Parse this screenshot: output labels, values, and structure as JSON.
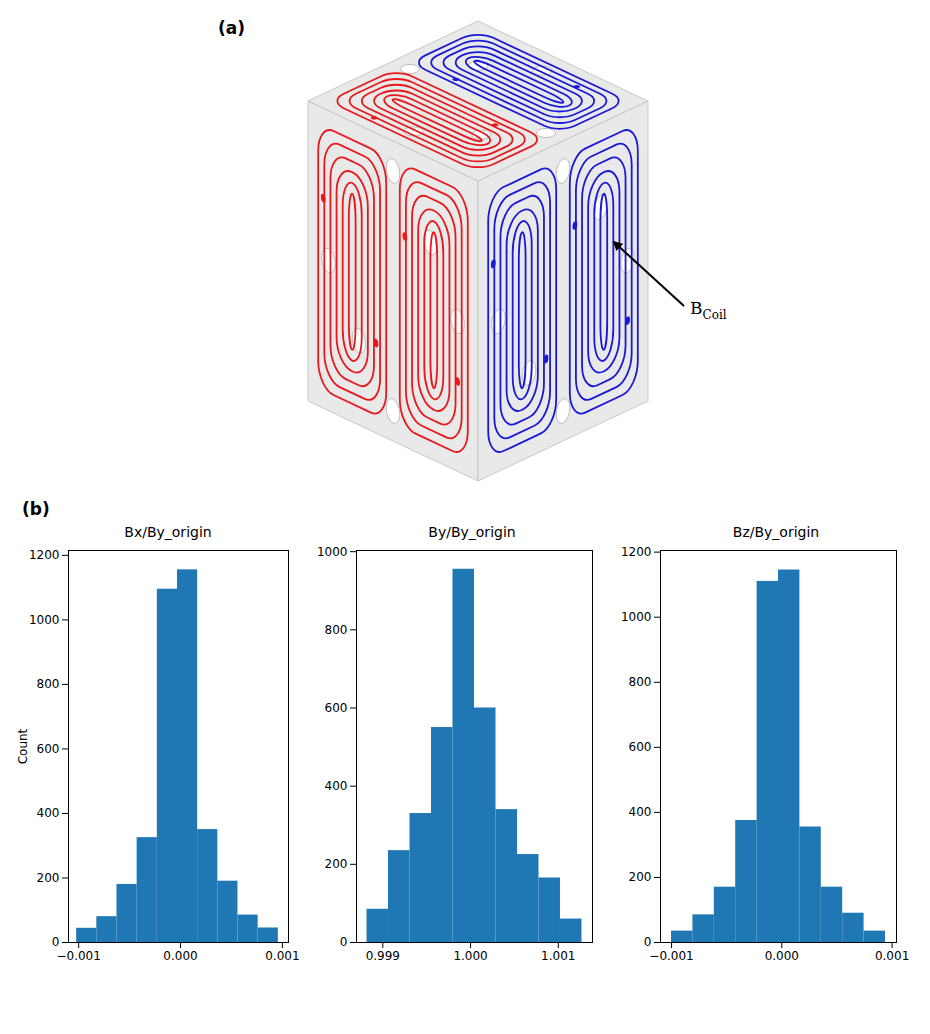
{
  "figure": {
    "panel_labels": [
      "(a)",
      "(b)"
    ],
    "diagram": {
      "annotation": {
        "text": "B",
        "subscript": "Coil"
      }
    }
  },
  "chart_data": [
    {
      "type": "histogram",
      "title": "Bx/By_origin",
      "color": "#1f77b4",
      "bins": [
        -0.00102,
        -0.000822,
        -0.000624,
        -0.000426,
        -0.000228,
        -3e-05,
        0.000168,
        0.000366,
        0.000564,
        0.000762,
        0.00096
      ],
      "counts": [
        44,
        80,
        180,
        325,
        1095,
        1155,
        350,
        190,
        85,
        45
      ],
      "xlim": [
        -0.0011,
        0.00106
      ],
      "xticks": [
        {
          "value": -0.001,
          "label": "−0.001"
        },
        {
          "value": 0,
          "label": "0.000"
        },
        0.001
      ],
      "ylim": [
        0,
        1215
      ],
      "yticks": [
        0,
        200,
        400,
        600,
        800,
        1000,
        1200
      ],
      "ylabel": "Count"
    },
    {
      "type": "histogram",
      "title": "By/By_origin",
      "color": "#1f77b4",
      "bins": [
        0.99882,
        0.999065,
        0.99931,
        0.999555,
        0.9998,
        1.000045,
        1.00029,
        1.000535,
        1.00078,
        1.001025,
        1.00127
      ],
      "counts": [
        85,
        235,
        330,
        550,
        955,
        600,
        340,
        225,
        165,
        60
      ],
      "xlim": [
        0.9987,
        1.00139
      ],
      "xticks": [
        0.999,
        {
          "value": 1,
          "label": "1.000"
        },
        1.001
      ],
      "ylim": [
        0,
        1003
      ],
      "yticks": [
        0,
        200,
        400,
        600,
        800,
        1000
      ]
    },
    {
      "type": "histogram",
      "title": "Bz/By_origin",
      "color": "#1f77b4",
      "bins": [
        -0.001,
        -0.000806,
        -0.000612,
        -0.000418,
        -0.000224,
        -3e-05,
        0.000164,
        0.000358,
        0.000552,
        0.000746,
        0.00094
      ],
      "counts": [
        35,
        85,
        170,
        375,
        1110,
        1145,
        355,
        170,
        90,
        35
      ],
      "xlim": [
        -0.0011,
        0.00104
      ],
      "xticks": [
        {
          "value": -0.001,
          "label": "−0.001"
        },
        {
          "value": 0,
          "label": "0.000"
        },
        0.001
      ],
      "ylim": [
        0,
        1205
      ],
      "yticks": [
        0,
        200,
        400,
        600,
        800,
        1000,
        1200
      ]
    }
  ]
}
